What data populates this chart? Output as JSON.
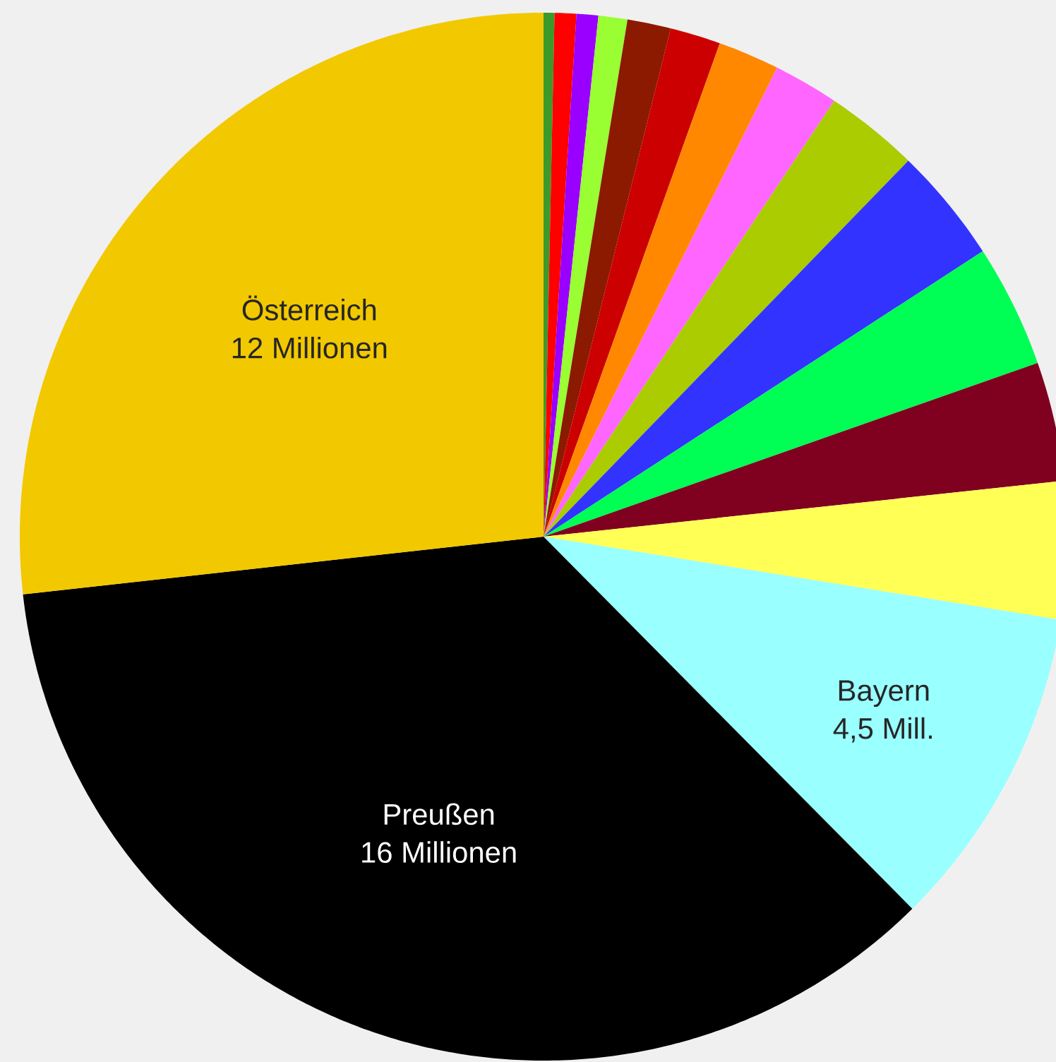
{
  "chart_data": {
    "type": "pie",
    "categories": [
      null,
      null,
      null,
      null,
      null,
      null,
      null,
      null,
      null,
      null,
      null,
      null,
      null,
      "Bayern",
      "Preußen",
      "Österreich"
    ],
    "values": [
      0.15,
      0.3,
      0.3,
      0.4,
      0.6,
      0.7,
      0.85,
      0.9,
      1.3,
      1.6,
      1.7,
      1.65,
      1.9,
      4.5,
      16,
      12
    ],
    "value_labels": [
      null,
      null,
      null,
      null,
      null,
      null,
      null,
      null,
      null,
      null,
      null,
      null,
      null,
      "4,5 Mill.",
      "16 Millionen",
      "12 Millionen"
    ],
    "colors": [
      "#3c9a2a",
      "#ff0000",
      "#9900ff",
      "#99ff33",
      "#8b1a00",
      "#cc0000",
      "#ff8800",
      "#ff66ff",
      "#aacc00",
      "#3333ff",
      "#00ff55",
      "#800020",
      "#ffff55",
      "#99ffff",
      "#000000",
      "#f2c800"
    ]
  }
}
